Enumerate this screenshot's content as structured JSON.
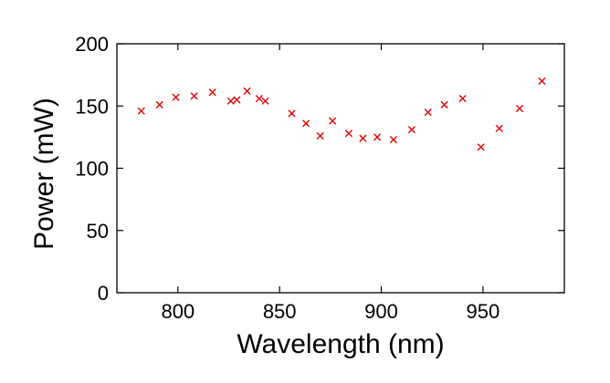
{
  "chart_data": {
    "type": "scatter",
    "xlabel": "Wavelength (nm)",
    "ylabel": "Power (mW)",
    "xlim": [
      770,
      990
    ],
    "ylim": [
      0,
      200
    ],
    "xticks": [
      800,
      850,
      900,
      950
    ],
    "yticks": [
      0,
      50,
      100,
      150,
      200
    ],
    "grid": false,
    "marker": "x",
    "marker_color": "#e00000",
    "series": [
      {
        "x": [
          782,
          791,
          799,
          808,
          817,
          826,
          829,
          834,
          840,
          843,
          856,
          863,
          870,
          876,
          884,
          891,
          898,
          906,
          915,
          923,
          931,
          940,
          949,
          958,
          968,
          979
        ],
        "y": [
          146,
          151,
          157,
          158,
          161,
          154,
          155,
          162,
          156,
          154,
          144,
          136,
          126,
          138,
          128,
          124,
          125,
          123,
          131,
          145,
          151,
          156,
          117,
          132,
          148,
          170
        ]
      }
    ]
  }
}
